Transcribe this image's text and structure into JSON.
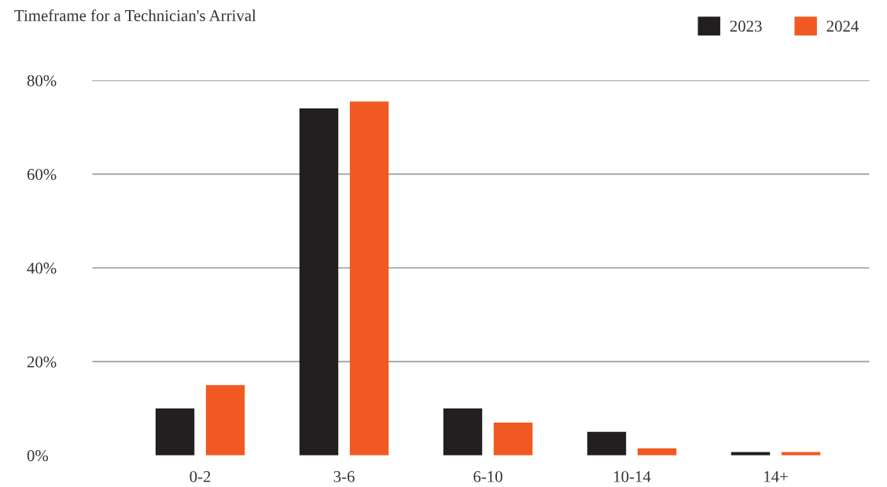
{
  "chart_data": {
    "type": "bar",
    "title": "Timeframe for a Technician's Arrival",
    "categories": [
      "0-2",
      "3-6",
      "6-10",
      "10-14",
      "14+"
    ],
    "series": [
      {
        "name": "2023",
        "color": "#231f20",
        "values": [
          10,
          74,
          10,
          5,
          0.7
        ]
      },
      {
        "name": "2024",
        "color": "#f05a22",
        "values": [
          15,
          75.5,
          7,
          1.5,
          0.7
        ]
      }
    ],
    "ylim": [
      0,
      80
    ],
    "yticks": [
      {
        "value": 0,
        "label": "0%"
      },
      {
        "value": 20,
        "label": "20%"
      },
      {
        "value": 40,
        "label": "40%"
      },
      {
        "value": 60,
        "label": "60%"
      },
      {
        "value": 80,
        "label": "80%"
      }
    ],
    "grid": "y",
    "legend": "top right"
  }
}
